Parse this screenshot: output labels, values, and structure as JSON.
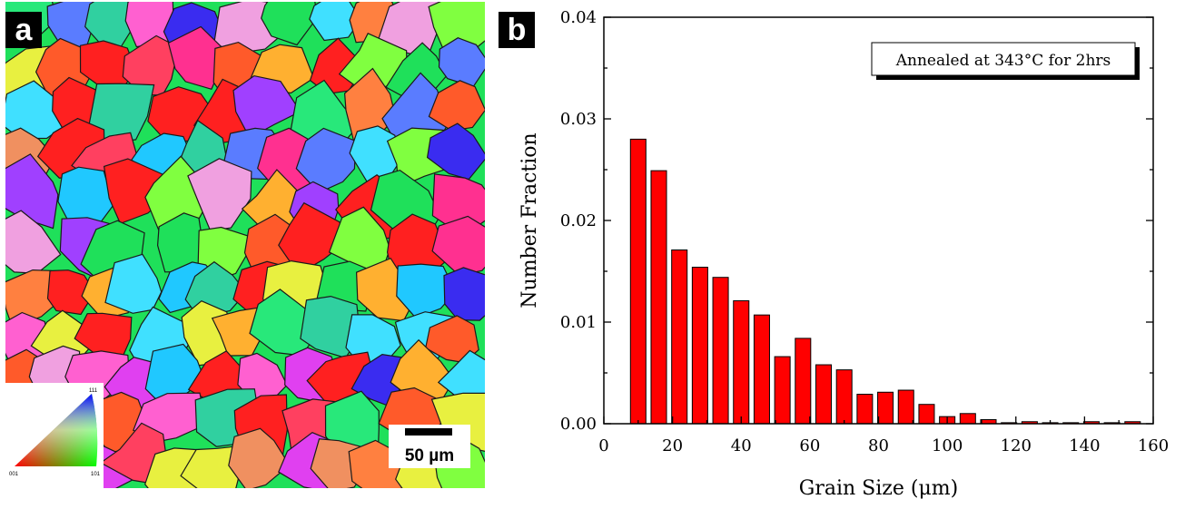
{
  "panel_a": {
    "tag": "a",
    "scale_bar_label": "50 µm",
    "legend_labels": [
      "111",
      "001",
      "101"
    ]
  },
  "panel_b": {
    "tag": "b"
  },
  "chart_data": {
    "type": "bar",
    "annotation": "Annealed at 343°C for 2hrs",
    "xlabel": "Grain Size (μm)",
    "ylabel": "Number Fraction",
    "xlim": [
      0,
      160
    ],
    "ylim": [
      0,
      0.04
    ],
    "xticks": [
      0,
      20,
      40,
      60,
      80,
      100,
      120,
      140,
      160
    ],
    "yticks": [
      "0.00",
      "0.01",
      "0.02",
      "0.03",
      "0.04"
    ],
    "bar_width": 4.5,
    "x": [
      10,
      16,
      22,
      28,
      34,
      40,
      46,
      52,
      58,
      64,
      70,
      76,
      82,
      88,
      94,
      100,
      106,
      112,
      118,
      124,
      130,
      136,
      142,
      148,
      154
    ],
    "values": [
      0.028,
      0.0249,
      0.0171,
      0.0154,
      0.0144,
      0.0121,
      0.0107,
      0.0066,
      0.0084,
      0.0058,
      0.0053,
      0.0029,
      0.0031,
      0.0033,
      0.0019,
      0.0007,
      0.001,
      0.0004,
      0.0001,
      0.0002,
      0.0001,
      0.0001,
      0.0002,
      0.0001,
      0.0002
    ],
    "bar_color": "#ff0000",
    "grid": false,
    "legend_position": "top-right"
  }
}
